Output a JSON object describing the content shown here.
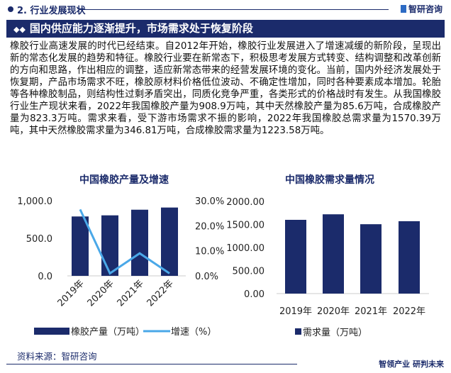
{
  "header": {
    "section": "2. 行业发展现状",
    "brand": "智研咨询"
  },
  "banner": {
    "title": "国内供应能力逐渐提升，市场需求处于恢复阶段"
  },
  "body": {
    "paragraph": "橡胶行业高速发展的时代已经结束。自2012年开始，橡胶行业发展进入了增速减缓的新阶段，呈现出新的常态化发展的趋势和特征。橡胶行业要在新常态下，积极思考发展方式转变、结构调整和改革创新的方向和思路，作出相应的调整，适应新常态带来的经营发展环境的变化。当前，国内外经济发展处于恢复期，产品市场需求不旺，橡胶原材料价格低位波动、不确定性增加，同时各种要素成本增加。轮胎等各种橡胶制品，则结构性过剩矛盾突出，同质化竞争严重，各类形式的价格战时有发生。从我国橡胶行业生产现状来看，2022年我国橡胶产量为908.9万吨，其中天然橡胶产量为85.6万吨，合成橡胶产量为823.3万吨。需求来看，受下游市场需求不振的影响，2022年我国橡胶总需求量为1570.39万吨，其中天然橡胶需求量为346.81万吨，合成橡胶需求量为1223.58万吨。"
  },
  "footer": {
    "source": "资料来源：智研咨询",
    "slogan": "智领产业 研判未来"
  },
  "colors": {
    "navy": "#1b2b6b",
    "line": "#4aa8e8"
  },
  "chart_data": [
    {
      "type": "bar+line",
      "title": "中国橡胶产量及增速",
      "categories": [
        "2019年",
        "2020年",
        "2021年",
        "2022年"
      ],
      "series": [
        {
          "name": "橡胶产量（万吨）",
          "type": "bar",
          "axis": "left",
          "values": [
            790,
            805,
            880,
            908.9
          ]
        },
        {
          "name": "增速（%）",
          "type": "line",
          "axis": "right",
          "values": [
            26.5,
            1.0,
            9.0,
            1.0
          ]
        }
      ],
      "ylim": [
        0,
        1000
      ],
      "yticks": [
        "0.0",
        "500.0",
        "1,000.0"
      ],
      "y2lim": [
        0,
        30
      ],
      "y2ticks": [
        "0.0%",
        "10.0%",
        "20.0%",
        "30.0%"
      ],
      "legend": "bottom"
    },
    {
      "type": "bar",
      "title": "中国橡胶需求量情况",
      "categories": [
        "2019年",
        "2020年",
        "2021年",
        "2022年"
      ],
      "series": [
        {
          "name": "需求量（万吨）",
          "values": [
            1600,
            1720,
            1505,
            1570.39
          ]
        }
      ],
      "ylim": [
        0,
        2000
      ],
      "yticks": [
        "0.00",
        "500.00",
        "1000.00",
        "1500.00",
        "2000.00"
      ],
      "legend": "bottom"
    }
  ]
}
